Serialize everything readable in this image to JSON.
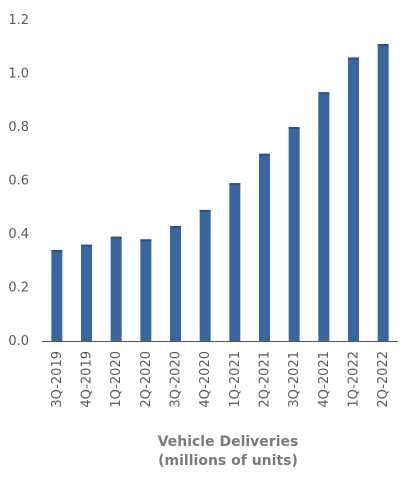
{
  "chart_data": {
    "type": "bar",
    "title": "",
    "xlabel": [
      "Vehicle Deliveries",
      "(millions of units)"
    ],
    "ylabel": "",
    "ylim": [
      0,
      1.2
    ],
    "yticks": [
      "0.0",
      "0.2",
      "0.4",
      "0.6",
      "0.8",
      "1.0",
      "1.2"
    ],
    "grid": false,
    "legend": "none",
    "categories": [
      "3Q-2019",
      "4Q-2019",
      "1Q-2020",
      "2Q-2020",
      "3Q-2020",
      "4Q-2020",
      "1Q-2021",
      "2Q-2021",
      "3Q-2021",
      "4Q-2021",
      "1Q-2022",
      "2Q-2022"
    ],
    "values": [
      0.34,
      0.36,
      0.39,
      0.38,
      0.43,
      0.49,
      0.59,
      0.7,
      0.8,
      0.93,
      1.06,
      1.11
    ],
    "colors": {
      "bar": "#3a66a0",
      "bar_dark": "#2b5283",
      "axis": "#555555"
    }
  }
}
